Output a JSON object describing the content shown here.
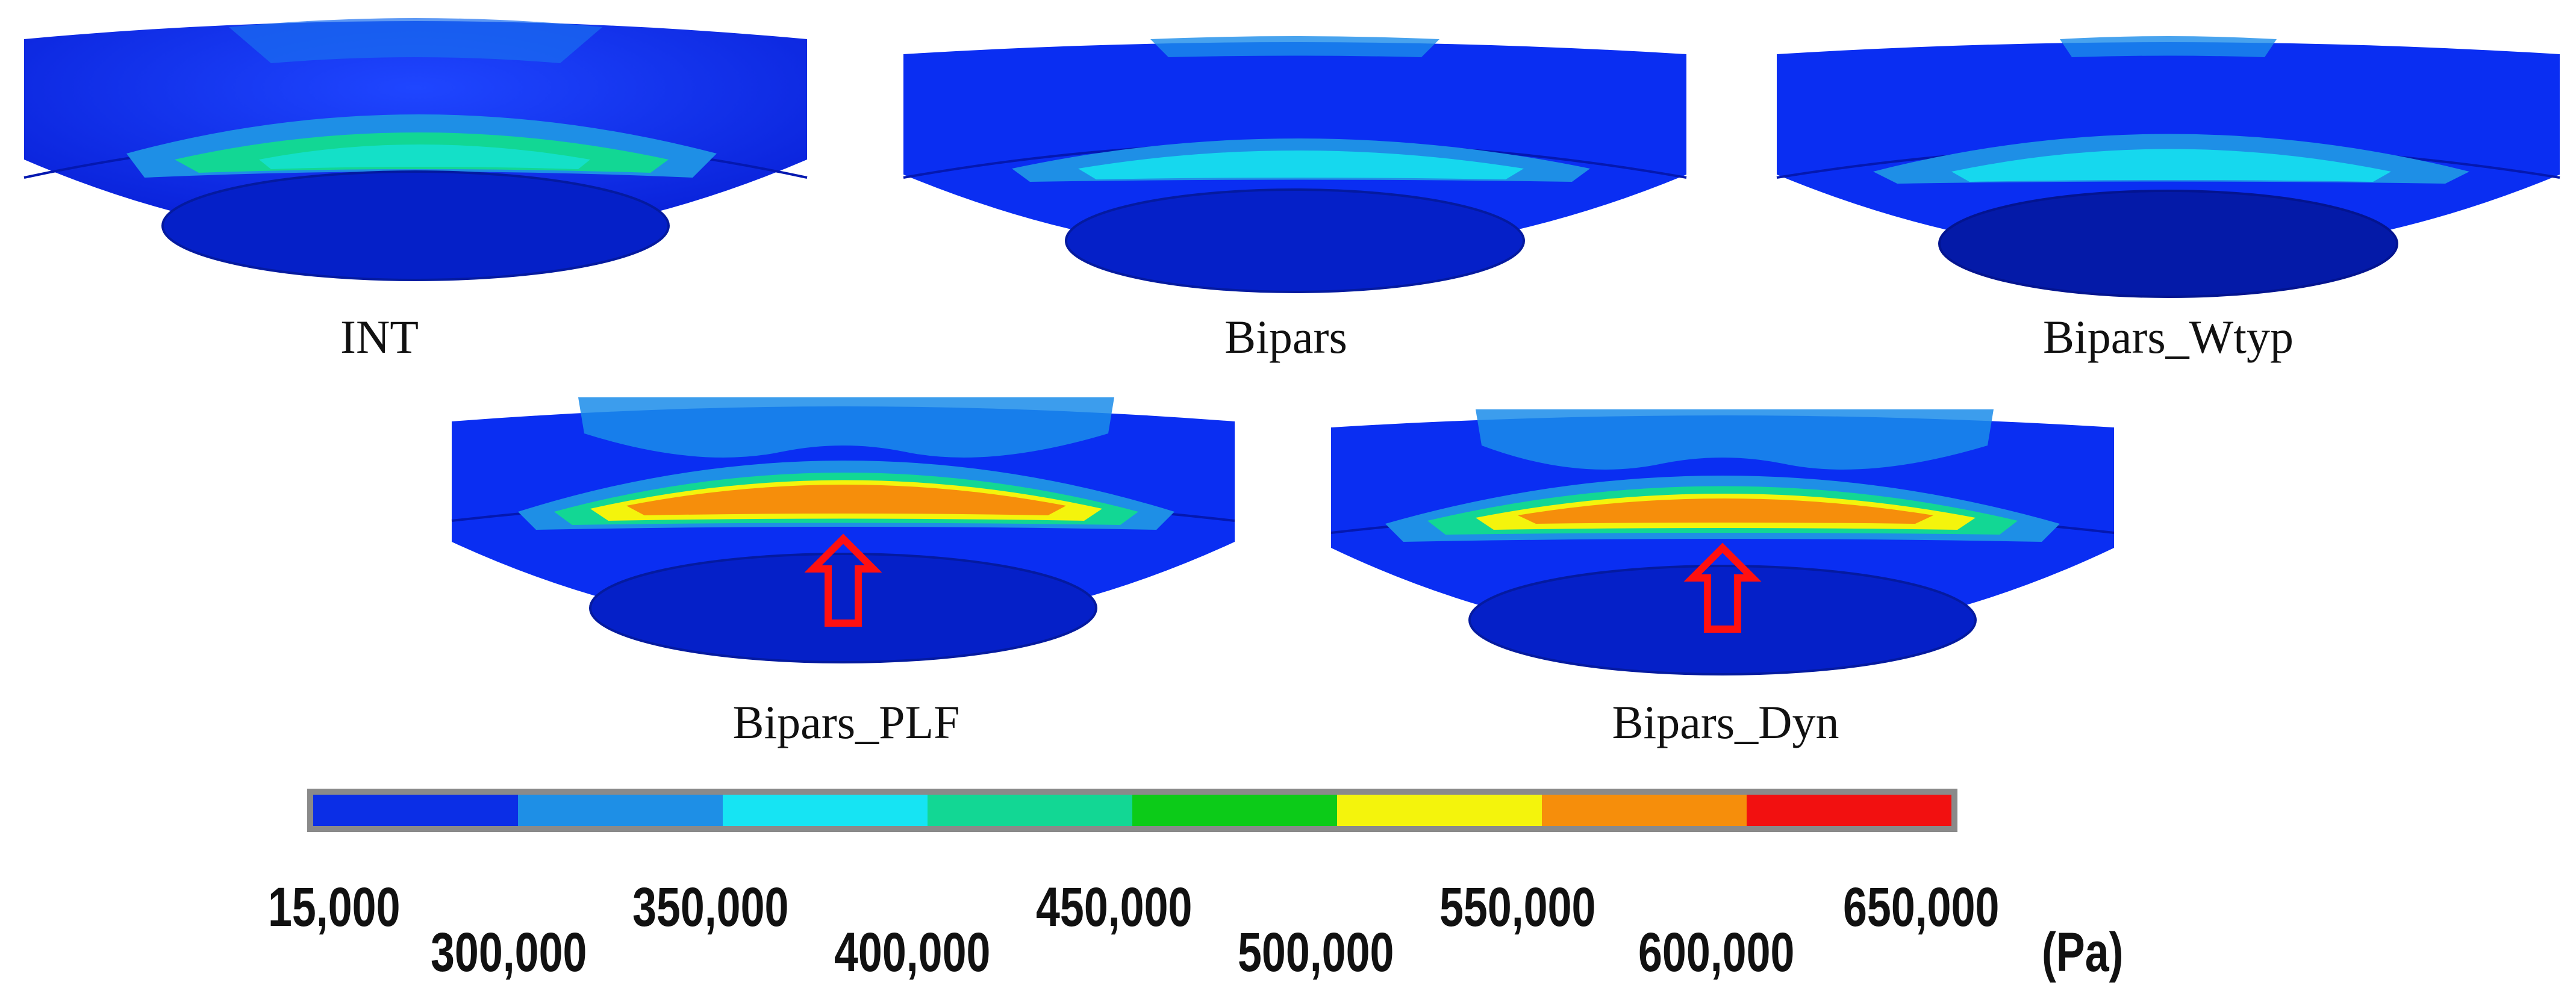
{
  "panels": [
    {
      "id": "int",
      "label": "INT",
      "stress": "low"
    },
    {
      "id": "bipars",
      "label": "Bipars",
      "stress": "low"
    },
    {
      "id": "bipars_wtyp",
      "label": "Bipars_Wtyp",
      "stress": "low"
    },
    {
      "id": "bipars_plf",
      "label": "Bipars_PLF",
      "stress": "high"
    },
    {
      "id": "bipars_dyn",
      "label": "Bipars_Dyn",
      "stress": "high"
    }
  ],
  "colors": {
    "body": "#0a2ef2",
    "body_dark": "#0416a8",
    "band": [
      "#0b39e0",
      "#1e8fe6",
      "#13e3f3",
      "#0fd59a",
      "#0acb1c",
      "#f6f609",
      "#f7900a",
      "#f20d0d"
    ],
    "arrow": "#ff1010"
  },
  "legend": {
    "colors": [
      "#0b2ee6",
      "#1e8fe6",
      "#16e4f3",
      "#12d794",
      "#0ccb18",
      "#f4f40c",
      "#f68e0b",
      "#f21010"
    ],
    "ticks": [
      "15,000",
      "300,000",
      "350,000",
      "400,000",
      "450,000",
      "500,000",
      "550,000",
      "600,000",
      "650,000"
    ],
    "unit": "(Pa)"
  }
}
